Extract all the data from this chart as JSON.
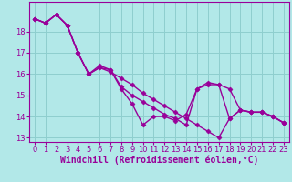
{
  "bg_color": "#b2e8e8",
  "grid_color": "#8ecece",
  "line_color": "#990099",
  "marker": "D",
  "marker_size": 2.5,
  "line_width": 1.0,
  "xlabel": "Windchill (Refroidissement éolien,°C)",
  "xlabel_fontsize": 7,
  "tick_fontsize": 6,
  "ylim": [
    12.8,
    19.4
  ],
  "yticks": [
    13,
    14,
    15,
    16,
    17,
    18
  ],
  "xticks": [
    0,
    1,
    2,
    3,
    4,
    5,
    6,
    7,
    8,
    9,
    10,
    11,
    12,
    13,
    14,
    15,
    16,
    17,
    18,
    19,
    20,
    21,
    22,
    23
  ],
  "series1_y": [
    18.6,
    18.4,
    18.8,
    18.3,
    17.0,
    16.0,
    16.3,
    16.2,
    15.3,
    14.6,
    13.6,
    14.0,
    14.0,
    13.8,
    14.1,
    15.3,
    15.6,
    15.5,
    13.9,
    14.3,
    14.2,
    14.2,
    14.0,
    13.7
  ],
  "series2_y": [
    18.6,
    18.4,
    18.8,
    18.3,
    17.0,
    16.0,
    16.4,
    16.2,
    15.4,
    15.0,
    14.7,
    14.4,
    14.1,
    13.9,
    13.6,
    15.3,
    15.5,
    15.5,
    15.3,
    14.3,
    14.2,
    14.2,
    14.0,
    13.7
  ],
  "series3_y": [
    18.6,
    18.4,
    18.8,
    18.3,
    17.0,
    16.0,
    16.3,
    16.1,
    15.8,
    15.5,
    15.1,
    14.8,
    14.5,
    14.2,
    13.9,
    13.6,
    13.3,
    13.0,
    13.9,
    14.3,
    14.2,
    14.2,
    14.0,
    13.7
  ]
}
